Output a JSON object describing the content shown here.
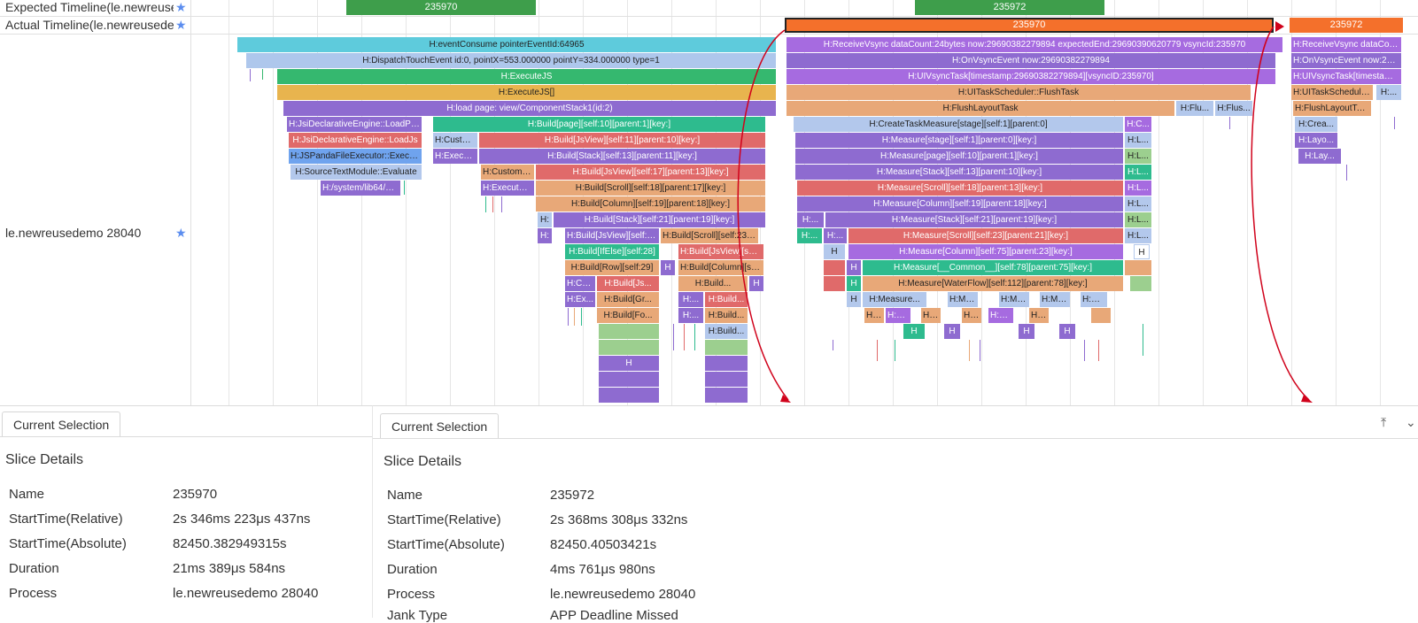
{
  "tracks": {
    "expected_label": "Expected Timeline(le.newreusedemo 28040)",
    "actual_label": "Actual Timeline(le.newreusedemo 28040)",
    "process_label": "le.newreusedemo 28040"
  },
  "expected_frames": [
    "235970",
    "235972"
  ],
  "actual_frames": [
    "235970",
    "235972"
  ],
  "colors": {
    "expected_frame": "#3e9e4b",
    "actual_frame": "#f4702b",
    "arrow": "#d0021b"
  },
  "slices": {
    "s0": "H:eventConsume pointerEventId:64965",
    "s1": "H:DispatchTouchEvent id:0, pointX=553.000000 pointY=334.000000 type=1",
    "s2": "H:ExecuteJS",
    "s3": "H:ExecuteJS[]",
    "s4": "H:load page: view/ComponentStack1(id:2)",
    "s5": "H:JsiDeclarativeEngine::LoadPageSource",
    "s6": "H:JsiDeclarativeEngine::LoadJs",
    "s7": "H:JSPandaFileExecutor::ExecuteModuleBuffer",
    "s8": "H:SourceTextModule::Evaluate",
    "s9": "H:/system/lib64/module",
    "s10": "H:Build[page][self:10][parent:1][key:]",
    "s11": "H:CustomNode",
    "s12": "H:Build[JsView][self:11][parent:10][key:]",
    "s13": "H:ExecuteJS",
    "s14": "H:Build[Stack][self:13][parent:11][key:]",
    "s15": "H:CustomNode",
    "s16": "H:Build[JsView][self:17][parent:13][key:]",
    "s17": "H:ExecuteJS",
    "s18": "H:Build[Scroll][self:18][parent:17][key:]",
    "s19": "H:Build[Column][self:19][parent:18][key:]",
    "s20": "H:",
    "s21": "H:Build[Stack][self:21][parent:19][key:]",
    "s22": "H:",
    "s23": "H:Build[JsView][self:22]",
    "s24": "H:Build[Scroll][self:23][parent:22]",
    "s25": "H:Build[IfElse][self:28]",
    "s26": "H:Build[JsView][self:30]",
    "s27": "H:Build[Row][self:29]",
    "s28": "H:Build[Column][self:31]",
    "s29": "H:Cu...",
    "s30": "H:Build[Js...",
    "s31": "H:Ex...",
    "s32": "H:Build[Gr...",
    "s33": "H:...",
    "s34": "H:Build...",
    "s35": "H:Build[Fo...",
    "s36": "H:...",
    "s37": "H:Build...",
    "s38": "H:Build...",
    "s39": "H",
    "s40": "H:ReceiveVsync dataCount:24bytes now:29690382279894 expectedEnd:29690390620779 vsyncId:235970",
    "s41": "H:OnVsyncEvent now:29690382279894",
    "s42": "H:UIVsyncTask[timestamp:29690382279894][vsyncID:235970]",
    "s43": "H:UITaskScheduler::FlushTask",
    "s44": "H:FlushLayoutTask",
    "s45": "H:Flu...",
    "s46": "H:Flus...",
    "s47": "H:CreateTaskMeasure[stage][self:1][parent:0]",
    "s48": "H:C...",
    "s49": "H:Measure[stage][self:1][parent:0][key:]",
    "s50": "H:L...",
    "s51": "H:Measure[page][self:10][parent:1][key:]",
    "s52": "H:L...",
    "s53": "H:Measure[Stack][self:13][parent:10][key:]",
    "s54": "H:L...",
    "s55": "H:Measure[Scroll][self:18][parent:13][key:]",
    "s56": "H:L...",
    "s57": "H:Measure[Column][self:19][parent:18][key:]",
    "s58": "H:L...",
    "s59": "H:...",
    "s60": "H:Measure[Stack][self:21][parent:19][key:]",
    "s61": "H:L...",
    "s62": "H:...",
    "s63": "H:...",
    "s64": "H:Measure[Scroll][self:23][parent:21][key:]",
    "s65": "H:L...",
    "s66": "H",
    "s67": "H:Measure[Column][self:75][parent:23][key:]",
    "s68": "H",
    "s69": "H",
    "s70": "H:Measure[__Common__][self:78][parent:75][key:]",
    "s71": "H",
    "s72": "H:Measure[WaterFlow][self:112][parent:78][key:]",
    "s73": "H",
    "s74": "H:Measure...",
    "s75": "H:Me...",
    "s76": "H:Me...",
    "s77": "H:Me...",
    "s78": "H:M...",
    "s79": "H:...",
    "s80": "H:M...",
    "s81": "H:...",
    "s82": "H:...",
    "s83": "H:M...",
    "s84": "H:...",
    "s85": "H:ReceiveVsync dataCount:24bytes",
    "s86": "H:OnVsyncEvent now:29690",
    "s87": "H:UIVsyncTask[timestamp:2969",
    "s88": "H:UITaskScheduler::FlushTask",
    "s89": "H:...",
    "s90": "H:FlushLayoutTask",
    "s91": "H:Crea...",
    "s92": "H:Layo...",
    "s93": "H:Lay..."
  },
  "left_panel": {
    "tab": "Current Selection",
    "section": "Slice Details",
    "rows": [
      {
        "key": "Name",
        "value": "235970"
      },
      {
        "key": "StartTime(Relative)",
        "value": "2s 346ms 223μs 437ns"
      },
      {
        "key": "StartTime(Absolute)",
        "value": "82450.382949315s"
      },
      {
        "key": "Duration",
        "value": "21ms 389μs 584ns"
      },
      {
        "key": "Process",
        "value": "le.newreusedemo 28040"
      }
    ]
  },
  "right_panel": {
    "tab": "Current Selection",
    "section": "Slice Details",
    "rows": [
      {
        "key": "Name",
        "value": "235972"
      },
      {
        "key": "StartTime(Relative)",
        "value": "2s 368ms 308μs 332ns"
      },
      {
        "key": "StartTime(Absolute)",
        "value": "82450.40503421s"
      },
      {
        "key": "Duration",
        "value": "4ms 761μs 980ns"
      },
      {
        "key": "Process",
        "value": "le.newreusedemo 28040"
      },
      {
        "key": "Jank Type",
        "value": "APP Deadline Missed"
      }
    ]
  }
}
